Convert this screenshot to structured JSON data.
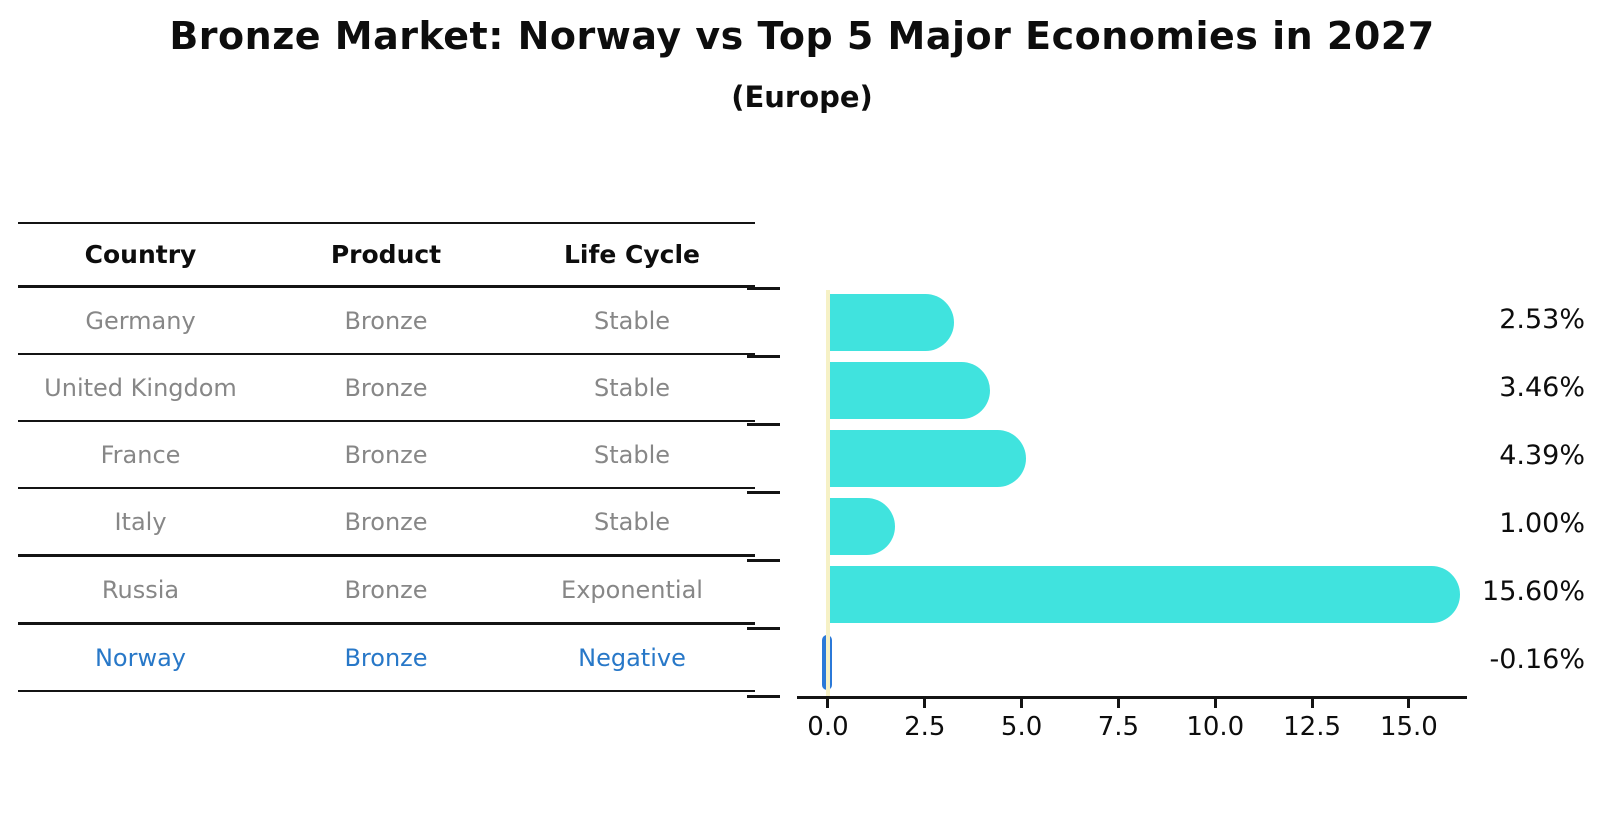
{
  "title": "Bronze Market: Norway vs Top 5 Major Economies in 2027",
  "subtitle": "(Europe)",
  "table": {
    "headers": [
      "Country",
      "Product",
      "Life Cycle"
    ],
    "rows": [
      {
        "country": "Germany",
        "product": "Bronze",
        "life_cycle": "Stable",
        "highlight": false,
        "thick_bottom": false
      },
      {
        "country": "United Kingdom",
        "product": "Bronze",
        "life_cycle": "Stable",
        "highlight": false,
        "thick_bottom": false
      },
      {
        "country": "France",
        "product": "Bronze",
        "life_cycle": "Stable",
        "highlight": false,
        "thick_bottom": false
      },
      {
        "country": "Italy",
        "product": "Bronze",
        "life_cycle": "Stable",
        "highlight": false,
        "thick_bottom": true
      },
      {
        "country": "Russia",
        "product": "Bronze",
        "life_cycle": "Exponential",
        "highlight": false,
        "thick_bottom": true
      },
      {
        "country": "Norway",
        "product": "Bronze",
        "life_cycle": "Negative",
        "highlight": true,
        "thick_bottom": false
      }
    ]
  },
  "chart_data": {
    "type": "bar",
    "orientation": "horizontal",
    "title": "Bronze Market: Norway vs Top 5 Major Economies in 2027 (Europe)",
    "categories": [
      "Germany",
      "United Kingdom",
      "France",
      "Italy",
      "Russia",
      "Norway"
    ],
    "values": [
      2.53,
      3.46,
      4.39,
      1.0,
      15.6,
      -0.16
    ],
    "value_labels": [
      "2.53%",
      "3.46%",
      "4.39%",
      "1.00%",
      "15.60%",
      "-0.16%"
    ],
    "x_ticks": [
      0.0,
      2.5,
      5.0,
      7.5,
      10.0,
      12.5,
      15.0
    ],
    "x_tick_labels": [
      "0.0",
      "2.5",
      "5.0",
      "7.5",
      "10.0",
      "12.5",
      "15.0"
    ],
    "xlim": [
      -0.8,
      16.5
    ],
    "grid": false,
    "legend": null,
    "bar_color": "#40E3DE",
    "negative_bar_color": "#2b79d8",
    "highlight_text_color": "#2878c8",
    "zero_line_color": "#f6f1c6"
  }
}
